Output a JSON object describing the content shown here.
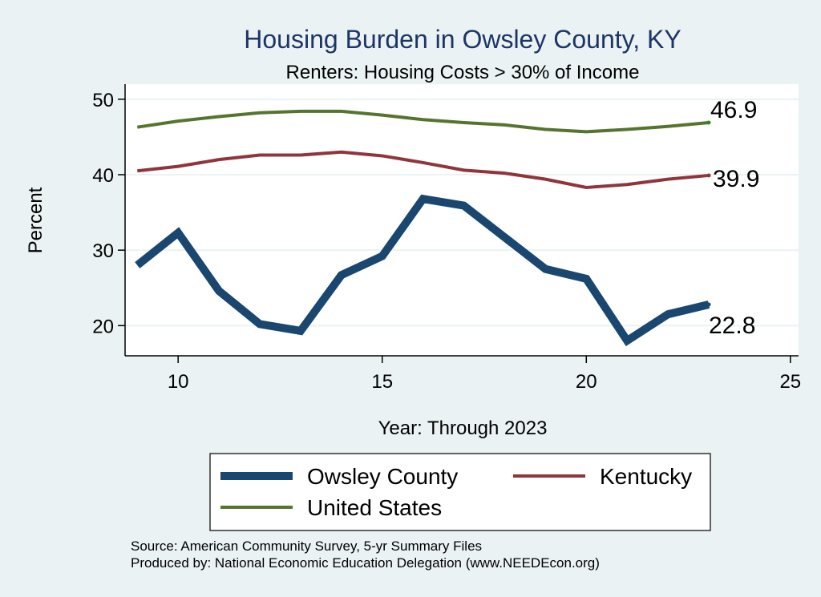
{
  "chart_data": {
    "type": "line",
    "title": "Housing Burden in Owsley County, KY",
    "subtitle": "Renters: Housing Costs > 30% of Income",
    "xlabel": "Year: Through 2023",
    "ylabel": "Percent",
    "xlim": [
      8.7,
      25.2
    ],
    "ylim": [
      16,
      52
    ],
    "xticks": [
      10,
      15,
      20,
      25
    ],
    "yticks": [
      20,
      30,
      40,
      50
    ],
    "grid": true,
    "legend_position": "bottom",
    "x": [
      9,
      10,
      11,
      12,
      13,
      14,
      15,
      16,
      17,
      18,
      19,
      20,
      21,
      22,
      23
    ],
    "series": [
      {
        "name": "Owsley County",
        "color": "#1a476f",
        "values": [
          28.0,
          32.3,
          24.6,
          20.2,
          19.3,
          26.7,
          29.2,
          36.8,
          35.9,
          31.7,
          27.5,
          26.2,
          18.0,
          21.5,
          22.8
        ],
        "end_label": "22.8"
      },
      {
        "name": "Kentucky",
        "color": "#90353b",
        "values": [
          40.5,
          41.1,
          42.0,
          42.6,
          42.6,
          43.0,
          42.5,
          41.6,
          40.6,
          40.2,
          39.4,
          38.3,
          38.7,
          39.4,
          39.9
        ],
        "end_label": "39.9"
      },
      {
        "name": "United States",
        "color": "#55752f",
        "values": [
          46.3,
          47.1,
          47.7,
          48.2,
          48.4,
          48.4,
          47.9,
          47.3,
          46.9,
          46.6,
          46.0,
          45.7,
          46.0,
          46.4,
          46.9
        ],
        "end_label": "46.9"
      }
    ],
    "notes": [
      "Source: American Community Survey, 5-yr Summary Files",
      "Produced by: National Economic Education Delegation (www.NEEDEcon.org)"
    ]
  }
}
